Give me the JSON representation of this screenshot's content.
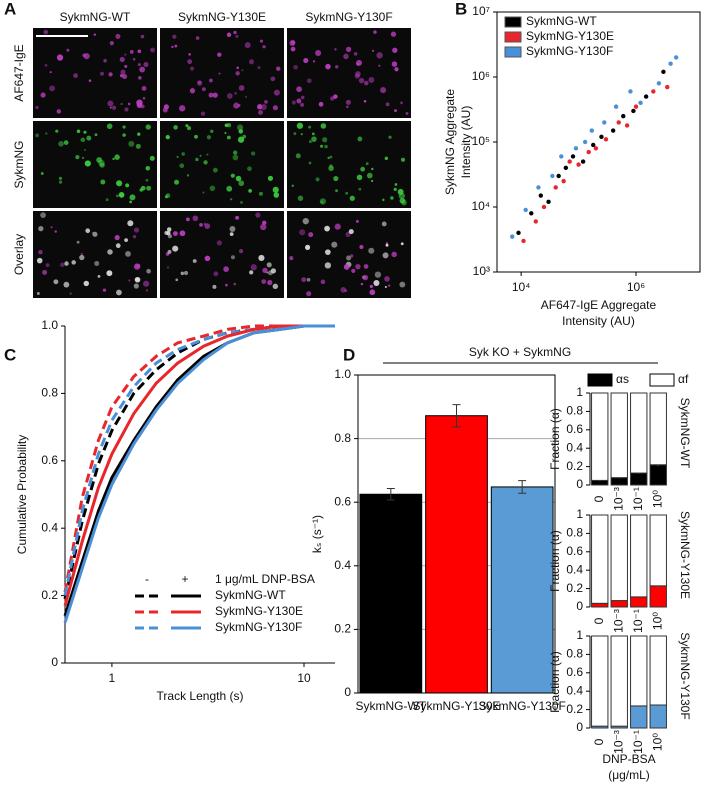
{
  "panel_labels": [
    "A",
    "B",
    "C",
    "D"
  ],
  "panel_a": {
    "columns": [
      "SykmNG-WT",
      "SykmNG-Y130E",
      "SykmNG-Y130F"
    ],
    "rows": [
      "AF647-IgE",
      "SykmNG",
      "Overlay"
    ]
  },
  "panel_d": {
    "header": "Syk KO + SykmNG",
    "fraction_legend": [
      {
        "name": "αs",
        "color": "#000000"
      },
      {
        "name": "αf",
        "color": "#ffffff"
      }
    ],
    "x_label": [
      "DNP-BSA",
      "(μg/mL)"
    ]
  },
  "chart_data": [
    {
      "type": "scatter",
      "x_label": [
        "AF647-IgE Aggregate",
        "Intensity (AU)"
      ],
      "y_label": [
        "SykmNG Aggregate",
        "Intensity (AU)"
      ],
      "xlog": true,
      "ylog": true,
      "legend": "top-left",
      "xlim": [
        3800,
        13000000
      ],
      "ylim": [
        1000,
        10000000
      ],
      "xticks": [
        {
          "value": 10000,
          "label": "10⁴"
        },
        {
          "value": 1000000,
          "label": "10⁶"
        }
      ],
      "yticks": [
        {
          "value": 1000,
          "label": "10³"
        },
        {
          "value": 10000,
          "label": "10⁴"
        },
        {
          "value": 100000,
          "label": "10⁵"
        },
        {
          "value": 1000000,
          "label": "10⁶"
        },
        {
          "value": 10000000,
          "label": "10⁷"
        }
      ],
      "series": [
        {
          "name": "SykmNG-WT",
          "color": "#000000",
          "x": [
            9000,
            15000,
            22000,
            30000,
            45000,
            60000,
            80000,
            120000,
            180000,
            250000,
            400000,
            600000,
            900000,
            1500000,
            3000000
          ],
          "values": [
            4000,
            8000,
            15000,
            12000,
            30000,
            40000,
            60000,
            50000,
            90000,
            120000,
            150000,
            250000,
            300000,
            500000,
            1200000
          ]
        },
        {
          "name": "SykmNG-Y130E",
          "color": "#e8262b",
          "x": [
            11000,
            18000,
            25000,
            40000,
            55000,
            70000,
            100000,
            150000,
            200000,
            300000,
            500000,
            700000,
            1000000,
            2000000,
            3500000
          ],
          "values": [
            3000,
            6000,
            10000,
            20000,
            25000,
            50000,
            45000,
            70000,
            80000,
            110000,
            200000,
            180000,
            350000,
            600000,
            700000
          ]
        },
        {
          "name": "SykmNG-Y130F",
          "color": "#4a90d9",
          "x": [
            7000,
            12000,
            20000,
            35000,
            50000,
            90000,
            130000,
            170000,
            280000,
            450000,
            800000,
            1200000,
            2500000,
            4000000,
            5000000
          ],
          "values": [
            3500,
            9000,
            20000,
            30000,
            60000,
            80000,
            100000,
            150000,
            200000,
            350000,
            600000,
            400000,
            800000,
            1600000,
            2000000
          ]
        }
      ]
    },
    {
      "type": "line",
      "x_label": "Track Length (s)",
      "y_label": "Cumulative Probability",
      "xlog": true,
      "xlim": [
        0.57,
        14.5
      ],
      "ylim": [
        0,
        1
      ],
      "xticks": [
        1,
        10
      ],
      "yticks": [
        0,
        0.2,
        0.4,
        0.6,
        0.8,
        {
          "value": 1,
          "label": "1.0"
        }
      ],
      "legend_columns": [
        "-",
        "+"
      ],
      "legend_note": "1 μg/mL DNP-BSA",
      "x": [
        0.57,
        0.7,
        0.85,
        1,
        1.3,
        1.7,
        2.2,
        3,
        4,
        5.5,
        7.5,
        10,
        14.5
      ],
      "series": [
        {
          "treatment": "-",
          "color": "#000000",
          "dashed": true,
          "values": [
            0.19,
            0.42,
            0.59,
            0.69,
            0.8,
            0.87,
            0.92,
            0.96,
            0.98,
            0.99,
            1,
            1,
            1
          ]
        },
        {
          "treatment": "-",
          "color": "#e8262b",
          "dashed": true,
          "values": [
            0.21,
            0.49,
            0.66,
            0.76,
            0.85,
            0.91,
            0.95,
            0.97,
            0.99,
            1,
            1,
            1,
            1
          ]
        },
        {
          "treatment": "-",
          "color": "#4a90d9",
          "dashed": true,
          "values": [
            0.2,
            0.45,
            0.62,
            0.72,
            0.82,
            0.89,
            0.93,
            0.96,
            0.98,
            0.99,
            1,
            1,
            1
          ]
        },
        {
          "name": "SykmNG-WT",
          "treatment": "+",
          "color": "#000000",
          "dashed": false,
          "values": [
            0.14,
            0.3,
            0.45,
            0.55,
            0.66,
            0.76,
            0.84,
            0.91,
            0.95,
            0.98,
            0.99,
            1,
            1
          ]
        },
        {
          "name": "SykmNG-Y130E",
          "treatment": "+",
          "color": "#e8262b",
          "dashed": false,
          "values": [
            0.17,
            0.36,
            0.52,
            0.62,
            0.74,
            0.83,
            0.89,
            0.94,
            0.97,
            0.99,
            1,
            1,
            1
          ]
        },
        {
          "name": "SykmNG-Y130F",
          "treatment": "+",
          "color": "#4a90d9",
          "dashed": false,
          "values": [
            0.12,
            0.28,
            0.43,
            0.53,
            0.65,
            0.75,
            0.83,
            0.9,
            0.95,
            0.98,
            0.99,
            1,
            1
          ]
        }
      ]
    },
    {
      "type": "bar",
      "y_label": "kₛ (s⁻¹)",
      "grid": true,
      "categories": [
        "SykmNG-WT",
        "SykmNG-Y130E",
        "SykmNG-Y130F"
      ],
      "values": [
        0.625,
        0.872,
        0.648
      ],
      "errors": [
        0.018,
        0.035,
        0.02
      ],
      "colors": [
        "#000000",
        "#ff0000",
        "#5b9bd5"
      ],
      "ylim": [
        0,
        1
      ],
      "yticks": [
        0,
        0.2,
        0.4,
        0.6,
        0.8,
        {
          "value": 1,
          "label": "1.0"
        }
      ]
    },
    {
      "type": "stacked_bar",
      "title": "SykmNG-WT",
      "y_label": "Fraction (α)",
      "categories": [
        "0",
        "10⁻³",
        "10⁻¹",
        "10⁰"
      ],
      "ylim": [
        0,
        1
      ],
      "yticks": [
        0,
        0.2,
        0.4,
        0.6,
        0.8,
        1
      ],
      "series": [
        {
          "color": "#000000",
          "values": [
            0.05,
            0.08,
            0.13,
            0.22
          ],
          "errors": [
            0.01,
            0.01,
            0.01,
            0.015
          ]
        },
        {
          "color": "#ffffff",
          "values": [
            0.95,
            0.92,
            0.87,
            0.78
          ]
        }
      ]
    },
    {
      "type": "stacked_bar",
      "title": "SykmNG-Y130E",
      "y_label": "Fraction (α)",
      "categories": [
        "0",
        "10⁻³",
        "10⁻¹",
        "10⁰"
      ],
      "ylim": [
        0,
        1
      ],
      "yticks": [
        0,
        0.2,
        0.4,
        0.6,
        0.8,
        1
      ],
      "series": [
        {
          "color": "#ff0000",
          "values": [
            0.04,
            0.07,
            0.11,
            0.23
          ],
          "errors": [
            0.01,
            0.01,
            0.01,
            0.02
          ]
        },
        {
          "color": "#ffffff",
          "values": [
            0.96,
            0.93,
            0.89,
            0.77
          ]
        }
      ]
    },
    {
      "type": "stacked_bar",
      "title": "SykmNG-Y130F",
      "y_label": "Fraction (α)",
      "categories": [
        "0",
        "10⁻³",
        "10⁻¹",
        "10⁰"
      ],
      "ylim": [
        0,
        1
      ],
      "yticks": [
        0,
        0.2,
        0.4,
        0.6,
        0.8,
        1
      ],
      "series": [
        {
          "color": "#5b9bd5",
          "values": [
            0.02,
            0.02,
            0.24,
            0.25
          ],
          "errors": [
            0.005,
            0.005,
            0.01,
            0.012
          ]
        },
        {
          "color": "#ffffff",
          "values": [
            0.98,
            0.98,
            0.76,
            0.75
          ]
        }
      ]
    }
  ]
}
